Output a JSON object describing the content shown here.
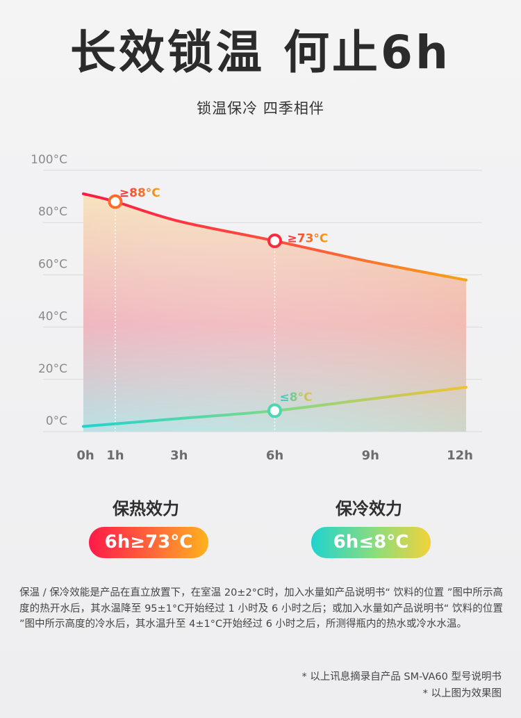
{
  "header": {
    "title": "长效锁温 何止6h",
    "subtitle": "锁温保冷 四季相伴"
  },
  "chart_data": {
    "type": "area",
    "y_tick_labels": [
      "100°C",
      "80°C",
      "60°C",
      "40°C",
      "20°C",
      "0°C"
    ],
    "y_ticks": [
      100,
      80,
      60,
      40,
      20,
      0
    ],
    "x_tick_labels": [
      "0h",
      "1h",
      "3h",
      "6h",
      "9h",
      "12h"
    ],
    "x_ticks": [
      0,
      1,
      3,
      6,
      9,
      12
    ],
    "ylim": [
      0,
      100
    ],
    "xlim": [
      0,
      12
    ],
    "grid": true,
    "series": [
      {
        "key": "hot",
        "x": [
          0,
          1,
          3,
          6,
          9,
          12
        ],
        "values": [
          91,
          88,
          80.5,
          73,
          65,
          58
        ],
        "color_start": "#ff1a48",
        "color_end": "#f5a314"
      },
      {
        "key": "cold",
        "x": [
          0,
          1,
          3,
          6,
          9,
          12
        ],
        "values": [
          2,
          3,
          5,
          8,
          12.5,
          17
        ],
        "color_start": "#1fd3cf",
        "color_end": "#f1c232"
      }
    ],
    "annotations": [
      {
        "series": "hot",
        "x": 1,
        "y": 88,
        "label": "≥88°C"
      },
      {
        "series": "hot",
        "x": 6,
        "y": 73,
        "label": "≥73°C"
      },
      {
        "series": "cold",
        "x": 6,
        "y": 8,
        "label": "≤8°C"
      }
    ],
    "colors": {
      "hot_label_start": "#ff2a3c",
      "hot_label_end": "#f5a314",
      "cold_label_start": "#2ccfd0",
      "cold_label_end": "#f0c23a",
      "fill_top": "#f6e3be",
      "fill_mid": "#f0b7c0",
      "fill_bottom": "#b9e1e3"
    }
  },
  "panels": {
    "hot": {
      "title": "保热效力",
      "badge": "6h≥73°C"
    },
    "cold": {
      "title": "保冷效力",
      "badge": "6h≤8°C"
    }
  },
  "footnote": "保温 / 保冷效能是产品在直立放置下，在室温 20±2°C时，加入水量如产品说明书“ 饮料的位置 ”图中所示高度的热开水后，其水温降至 95±1°C开始经过 1 小时及 6 小时之后；或加入水量如产品说明书“ 饮料的位置 ”图中所示高度的冷水后，其水温升至 4±1°C开始经过 6 小时之后，所测得瓶内的热水或冷水水温。",
  "source_notes": [
    "* 以上讯息摘录自产品 SM-VA60 型号说明书",
    "* 以上图为效果图"
  ]
}
